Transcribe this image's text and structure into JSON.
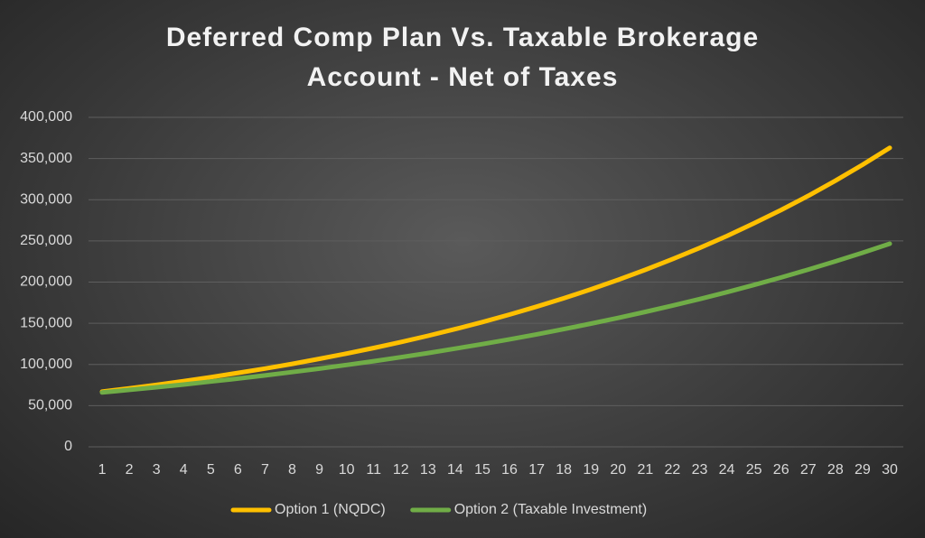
{
  "chart_data": {
    "type": "line",
    "title": "Deferred Comp Plan Vs. Taxable Brokerage Account - Net of Taxes",
    "categories": [
      1,
      2,
      3,
      4,
      5,
      6,
      7,
      8,
      9,
      10,
      11,
      12,
      13,
      14,
      15,
      16,
      17,
      18,
      19,
      20,
      21,
      22,
      23,
      24,
      25,
      26,
      27,
      28,
      29,
      30
    ],
    "series": [
      {
        "name": "Option 1 (NQDC)",
        "color": "#ffc000",
        "values": [
          67000,
          71000,
          75300,
          79800,
          84600,
          89700,
          95000,
          100700,
          106800,
          113200,
          120000,
          127200,
          134800,
          142900,
          151500,
          160600,
          170200,
          180400,
          191200,
          202700,
          214900,
          227800,
          241400,
          255900,
          271300,
          287600,
          304800,
          323100,
          342500,
          363000
        ]
      },
      {
        "name": "Option 2 (Taxable Investment)",
        "color": "#70ad47",
        "values": [
          66000,
          69100,
          72300,
          75600,
          79200,
          82800,
          86700,
          90700,
          94900,
          99400,
          104000,
          108800,
          113900,
          119200,
          124700,
          130500,
          136600,
          142900,
          149600,
          156500,
          163800,
          171400,
          179400,
          187700,
          196500,
          205600,
          215200,
          225200,
          235600,
          246600
        ]
      }
    ],
    "ylim": [
      0,
      400000
    ],
    "yticks": [
      {
        "value": 0,
        "label": "0"
      },
      {
        "value": 50000,
        "label": "50,000"
      },
      {
        "value": 100000,
        "label": "100,000"
      },
      {
        "value": 150000,
        "label": "150,000"
      },
      {
        "value": 200000,
        "label": "200,000"
      },
      {
        "value": 250000,
        "label": "250,000"
      },
      {
        "value": 300000,
        "label": "300,000"
      },
      {
        "value": 350000,
        "label": "350,000"
      },
      {
        "value": 400000,
        "label": "400,000"
      }
    ],
    "grid": true,
    "legend": "bottom"
  }
}
